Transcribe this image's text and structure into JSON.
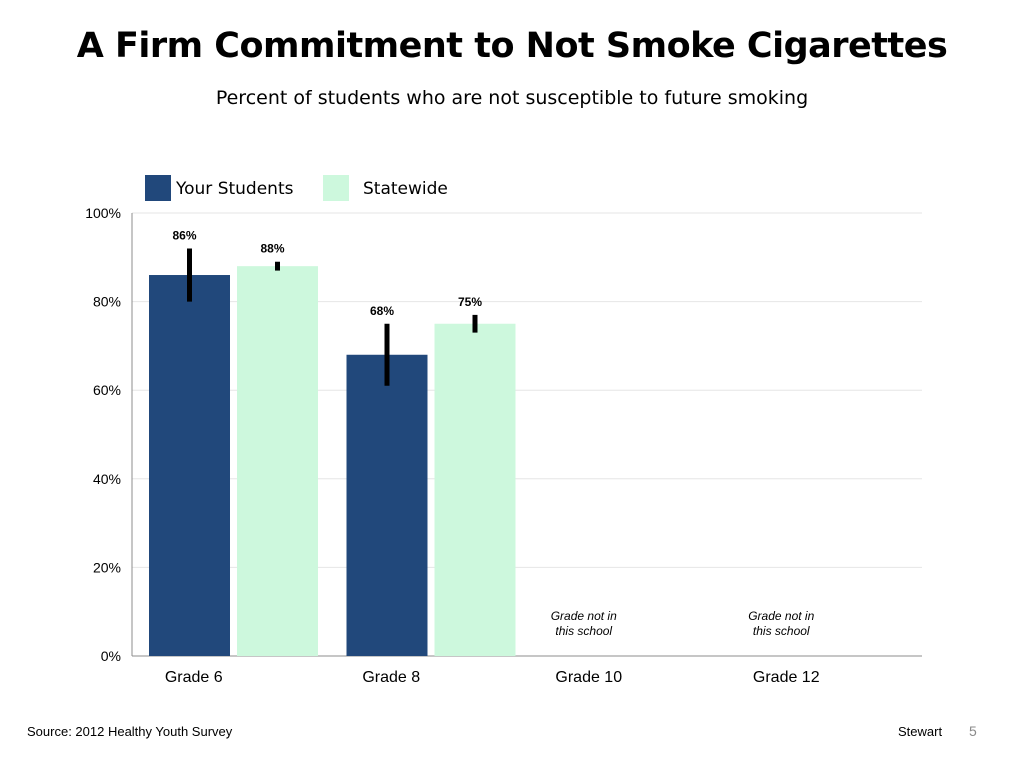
{
  "slide": {
    "title": "A Firm Commitment to Not Smoke Cigarettes",
    "subtitle": "Percent of students who are not susceptible to future smoking",
    "source": "Source: 2012 Healthy Youth Survey",
    "author": "Stewart",
    "page_number": "5"
  },
  "chart_data": {
    "type": "bar",
    "categories": [
      "Grade 6",
      "Grade 8",
      "Grade 10",
      "Grade 12"
    ],
    "series": [
      {
        "name": "Your Students",
        "color": "#21487b",
        "values": [
          86,
          68,
          null,
          null
        ],
        "labels": [
          "86%",
          "68%",
          "",
          ""
        ],
        "error_bars": [
          [
            80,
            92
          ],
          [
            61,
            75
          ],
          null,
          null
        ]
      },
      {
        "name": "Statewide",
        "color": "#cdf8dd",
        "values": [
          88,
          75,
          null,
          null
        ],
        "labels": [
          "88%",
          "75%",
          "",
          ""
        ],
        "error_bars": [
          [
            87,
            89
          ],
          [
            73,
            77
          ],
          null,
          null
        ]
      }
    ],
    "category_notes": [
      "",
      "",
      "Grade not in this school",
      "Grade not in this school"
    ],
    "ylim": [
      0,
      100
    ],
    "yticks": [
      0,
      20,
      40,
      60,
      80,
      100
    ],
    "ytick_labels": [
      "0%",
      "20%",
      "40%",
      "60%",
      "80%",
      "100%"
    ],
    "xlabel": "",
    "ylabel": "",
    "grid": true,
    "legend_position": "top-left"
  }
}
